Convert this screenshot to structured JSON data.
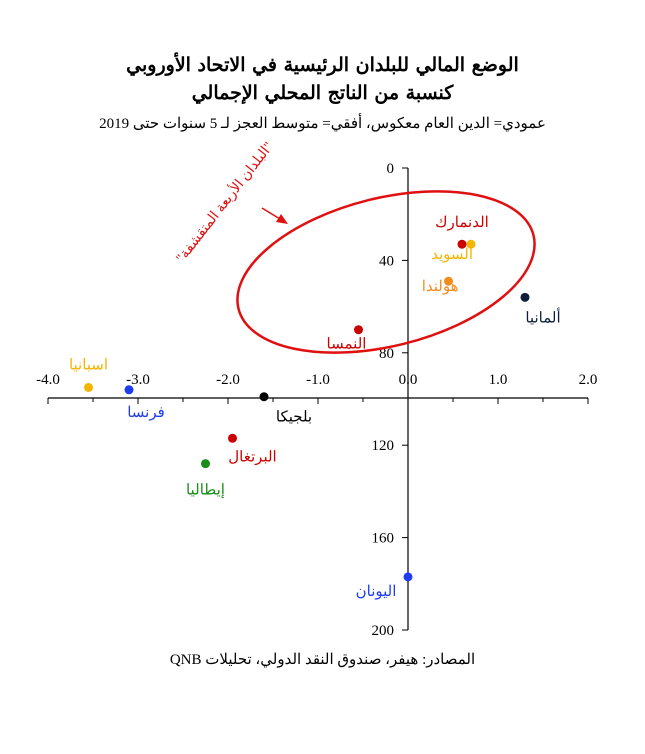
{
  "header": {
    "title_line1": "الوضع المالي للبلدان الرئيسية في الاتحاد الأوروبي",
    "title_line2": "كنسبة من الناتج المحلي الإجمالي",
    "subtitle": "عمودي= الدين العام معكوس، أفقي= متوسط العجز لـ 5 سنوات حتى 2019"
  },
  "footer": {
    "source": "المصادر: هيفر، صندوق النقد الدولي، تحليلات QNB"
  },
  "chart_data": {
    "type": "scatter",
    "x_axis": {
      "range": [
        -4.0,
        2.0
      ],
      "ticks": [
        -4.0,
        -3.0,
        -2.0,
        -1.0,
        0.0,
        1.0,
        2.0
      ],
      "tick_labels": [
        "-4.0",
        "-3.0",
        "-2.0",
        "-1.0",
        "0.0",
        "1.0",
        "2.0"
      ]
    },
    "y_axis": {
      "range": [
        0,
        200
      ],
      "inverted": true,
      "ticks": [
        0,
        40,
        80,
        120,
        160,
        200
      ],
      "tick_labels": [
        "0",
        "40",
        "80",
        "120",
        "160",
        "200"
      ]
    },
    "grid": false,
    "points": [
      {
        "label": "الدنمارك",
        "x": 0.6,
        "y": 33,
        "color": "#cc0000"
      },
      {
        "label": "السويد",
        "x": 0.7,
        "y": 33,
        "color": "#f5b400"
      },
      {
        "label": "هولندا",
        "x": 0.45,
        "y": 49,
        "color": "#f28c1e"
      },
      {
        "label": "ألمانيا",
        "x": 1.3,
        "y": 56,
        "color": "#0f1e3c"
      },
      {
        "label": "النمسا",
        "x": -0.55,
        "y": 70,
        "color": "#cc0000"
      },
      {
        "label": "اسبانيا",
        "x": -3.55,
        "y": 95,
        "color": "#f5b400"
      },
      {
        "label": "فرنسا",
        "x": -3.1,
        "y": 96,
        "color": "#1e3cf0"
      },
      {
        "label": "بلجيكا",
        "x": -1.6,
        "y": 99,
        "color": "#000000"
      },
      {
        "label": "البرتغال",
        "x": -1.95,
        "y": 117,
        "color": "#cc0000"
      },
      {
        "label": "إيطاليا",
        "x": -2.25,
        "y": 128,
        "color": "#1a8c1a"
      },
      {
        "label": "اليونان",
        "x": 0.0,
        "y": 177,
        "color": "#1e3cf0"
      }
    ],
    "annotation": {
      "text": "\"البلدان الأربعة المتقشفة\"",
      "color": "#e01010"
    },
    "accent_color": "#e01010"
  }
}
